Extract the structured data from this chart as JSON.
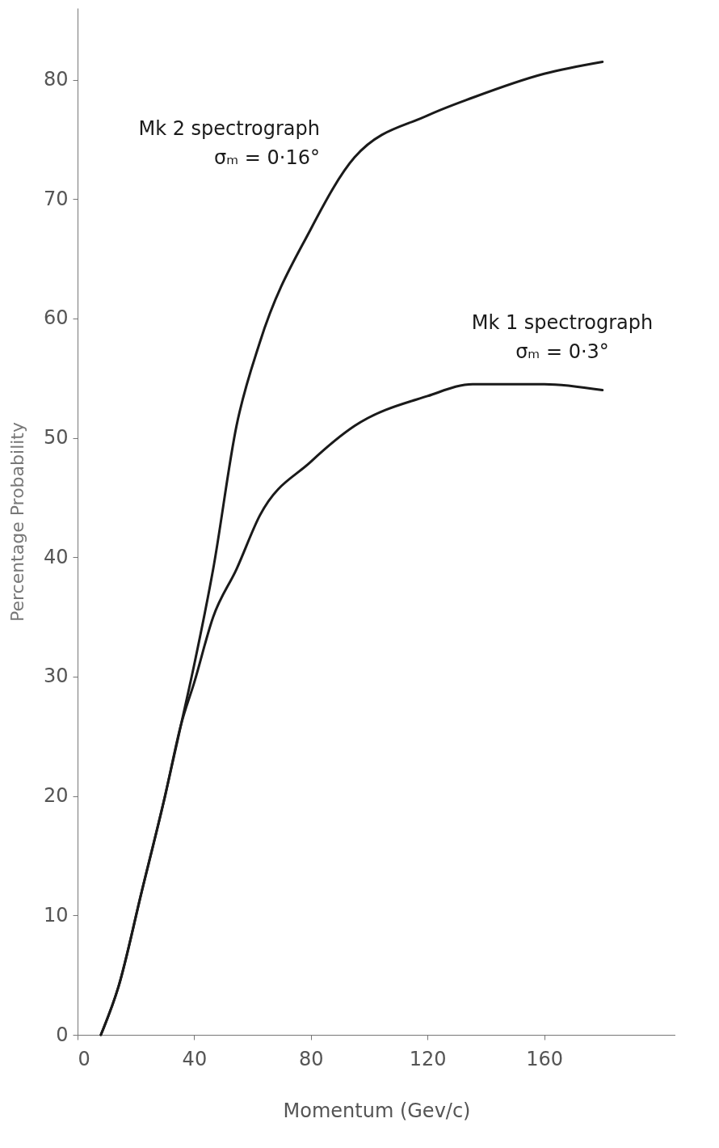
{
  "chart_data": {
    "type": "line",
    "xlabel": "Momentum (Gev/c)",
    "ylabel": "Percentage Probability",
    "xlim": [
      0,
      205
    ],
    "ylim": [
      0,
      86
    ],
    "xticks": [
      0,
      40,
      80,
      120,
      160
    ],
    "yticks": [
      0,
      10,
      20,
      30,
      40,
      50,
      60,
      70,
      80
    ],
    "annotations": [
      "σₘ = 0·16°",
      "σₘ = 0·3°"
    ],
    "series": [
      {
        "name": "Mk 2 spectrograph",
        "color": "#1a1a1a",
        "x": [
          8,
          14,
          22,
          30,
          35.5,
          40,
          46.5,
          54.5,
          62.5,
          80,
          95,
          120,
          135.5,
          160,
          180
        ],
        "values": [
          0,
          4,
          12,
          20,
          26,
          31,
          39,
          51,
          58,
          67.5,
          73.5,
          77,
          78.5,
          80.5,
          81.5
        ]
      },
      {
        "name": "Mk 1 spectrograph",
        "color": "#1a1a1a",
        "x": [
          8,
          14,
          22,
          30,
          35.5,
          40,
          46.5,
          54.5,
          62.5,
          80,
          95,
          120,
          135.5,
          160,
          180
        ],
        "values": [
          0,
          4,
          12,
          20,
          26,
          29.5,
          35,
          39,
          43.5,
          48,
          51,
          53.5,
          54.5,
          54.5,
          54
        ]
      }
    ]
  }
}
